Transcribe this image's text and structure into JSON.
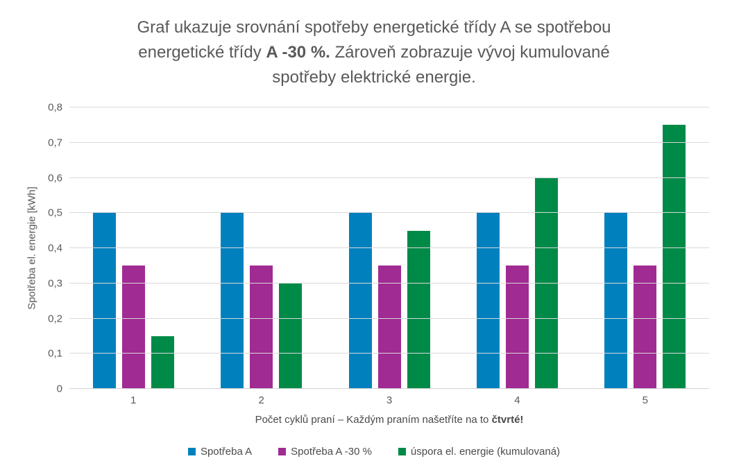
{
  "title": {
    "lines": [
      [
        {
          "text": "Graf ukazuje srovnání spotřeby energetické třídy A se spotřebou",
          "bold": false
        }
      ],
      [
        {
          "text": "energetické třídy ",
          "bold": false
        },
        {
          "text": "A -30 %.",
          "bold": true
        },
        {
          "text": " Zároveň zobrazuje vývoj kumulované",
          "bold": false
        }
      ],
      [
        {
          "text": "spotřeby elektrické energie.",
          "bold": false
        }
      ]
    ]
  },
  "chart_data": {
    "type": "bar",
    "title": "Graf ukazuje srovnání spotřeby energetické třídy A se spotřebou energetické třídy A -30 %. Zároveň zobrazuje vývoj kumulované spotřeby elektrické energie.",
    "categories": [
      "1",
      "2",
      "3",
      "4",
      "5"
    ],
    "series": [
      {
        "name": "Spotřeba A",
        "color": "#0081be",
        "values": [
          0.5,
          0.5,
          0.5,
          0.5,
          0.5
        ]
      },
      {
        "name": "Spotřeba A -30 %",
        "color": "#a02b93",
        "values": [
          0.35,
          0.35,
          0.35,
          0.35,
          0.35
        ]
      },
      {
        "name": "úspora el. energie (kumulovaná)",
        "color": "#008a48",
        "values": [
          0.15,
          0.3,
          0.45,
          0.6,
          0.75
        ]
      }
    ],
    "xlabel": {
      "prefix": "Počet cyklů praní – Každým praním našetříte na to ",
      "bold": "čtvrté!"
    },
    "ylabel": "Spotřeba el. energie [kWh]",
    "ylim": [
      0,
      0.8
    ],
    "yticks": [
      {
        "value": 0,
        "label": "0"
      },
      {
        "value": 0.1,
        "label": "0,1"
      },
      {
        "value": 0.2,
        "label": "0,2"
      },
      {
        "value": 0.3,
        "label": "0,3"
      },
      {
        "value": 0.4,
        "label": "0,4"
      },
      {
        "value": 0.5,
        "label": "0,5"
      },
      {
        "value": 0.6,
        "label": "0,6"
      },
      {
        "value": 0.7,
        "label": "0,7"
      },
      {
        "value": 0.8,
        "label": "0,8"
      }
    ],
    "grid": true,
    "legend_position": "bottom"
  },
  "colors": {
    "gridline": "#d9d9d9",
    "axis_line": "#d3d3d3",
    "text": "#595959"
  }
}
